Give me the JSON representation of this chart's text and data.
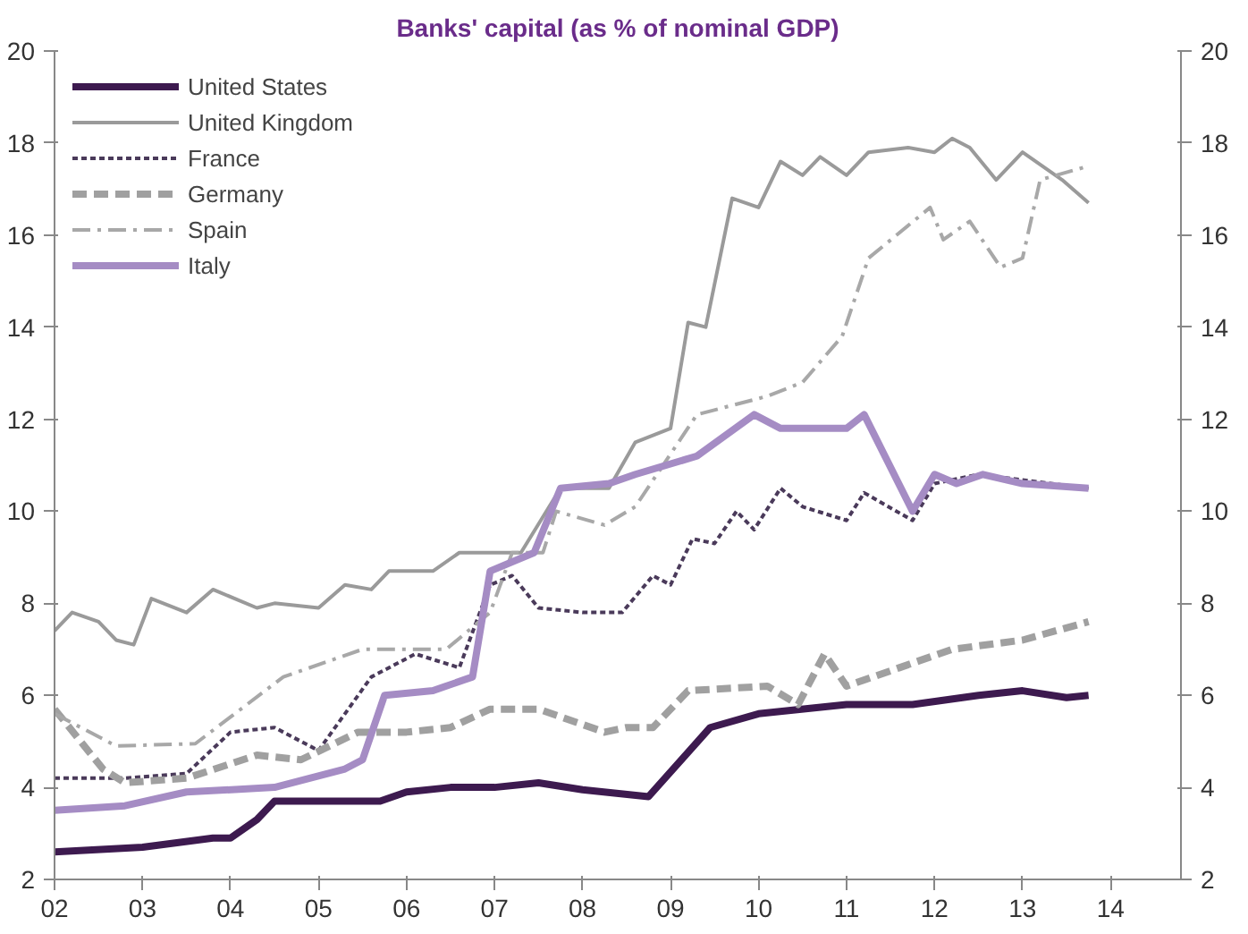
{
  "chart_data": {
    "type": "line",
    "title": "Banks' capital (as % of nominal GDP)",
    "xlim": [
      2002,
      2014.8
    ],
    "xticks": [
      {
        "value": 2002,
        "label": "02"
      },
      {
        "value": 2003,
        "label": "03"
      },
      {
        "value": 2004,
        "label": "04"
      },
      {
        "value": 2005,
        "label": "05"
      },
      {
        "value": 2006,
        "label": "06"
      },
      {
        "value": 2007,
        "label": "07"
      },
      {
        "value": 2008,
        "label": "08"
      },
      {
        "value": 2009,
        "label": "09"
      },
      {
        "value": 2010,
        "label": "10"
      },
      {
        "value": 2011,
        "label": "11"
      },
      {
        "value": 2012,
        "label": "12"
      },
      {
        "value": 2013,
        "label": "13"
      },
      {
        "value": 2014,
        "label": "14"
      }
    ],
    "ylim": [
      2,
      20
    ],
    "yticks": [
      2,
      4,
      6,
      8,
      10,
      12,
      14,
      16,
      18,
      20
    ],
    "y2lim": [
      2,
      20
    ],
    "y2ticks": [
      2,
      4,
      6,
      8,
      10,
      12,
      14,
      16,
      18,
      20
    ],
    "grid": false,
    "legend": "top left",
    "marker": "none",
    "series": [
      {
        "name": "United States",
        "color": "#3d1a4f",
        "line_style": "solid",
        "x": [
          2002,
          2003,
          2003.8,
          2004.0,
          2004.3,
          2004.5,
          2005,
          2005.7,
          2006,
          2006.5,
          2007,
          2007.5,
          2008,
          2008.75,
          2009.45,
          2010,
          2011,
          2011.75,
          2012.5,
          2013,
          2013.5,
          2013.75
        ],
        "values": [
          2.6,
          2.7,
          2.9,
          2.9,
          3.3,
          3.7,
          3.7,
          3.7,
          3.9,
          4.0,
          4.0,
          4.1,
          3.95,
          3.8,
          5.3,
          5.6,
          5.8,
          5.8,
          6.0,
          6.1,
          5.95,
          6.0
        ]
      },
      {
        "name": "United Kingdom",
        "color": "#9a9a9a",
        "line_style": "solid",
        "x": [
          2002,
          2002.2,
          2002.5,
          2002.7,
          2002.9,
          2003.1,
          2003.5,
          2003.8,
          2004.3,
          2004.5,
          2005,
          2005.3,
          2005.6,
          2005.8,
          2006.3,
          2006.6,
          2007,
          2007.3,
          2007.75,
          2008.3,
          2008.6,
          2009.0,
          2009.2,
          2009.4,
          2009.7,
          2010.0,
          2010.25,
          2010.5,
          2010.7,
          2011.0,
          2011.25,
          2011.7,
          2012.0,
          2012.2,
          2012.4,
          2012.7,
          2013.0,
          2013.45,
          2013.75
        ],
        "values": [
          7.4,
          7.8,
          7.6,
          7.2,
          7.1,
          8.1,
          7.8,
          8.3,
          7.9,
          8.0,
          7.9,
          8.4,
          8.3,
          8.7,
          8.7,
          9.1,
          9.1,
          9.1,
          10.5,
          10.5,
          11.5,
          11.8,
          14.1,
          14.0,
          16.8,
          16.6,
          17.6,
          17.3,
          17.7,
          17.3,
          17.8,
          17.9,
          17.8,
          18.1,
          17.9,
          17.2,
          17.8,
          17.2,
          16.7
        ]
      },
      {
        "name": "France",
        "color": "#4a3a5a",
        "line_style": "dotted",
        "x": [
          2002,
          2002.8,
          2003.5,
          2004.0,
          2004.5,
          2005.0,
          2005.3,
          2005.6,
          2006.1,
          2006.6,
          2006.95,
          2007.2,
          2007.5,
          2008.0,
          2008.45,
          2008.8,
          2009.0,
          2009.25,
          2009.5,
          2009.75,
          2009.95,
          2010.25,
          2010.5,
          2011.0,
          2011.2,
          2011.75,
          2012.0,
          2012.5,
          2013.75
        ],
        "values": [
          4.2,
          4.2,
          4.3,
          5.2,
          5.3,
          4.8,
          5.6,
          6.4,
          6.9,
          6.6,
          8.4,
          8.6,
          7.9,
          7.8,
          7.8,
          8.6,
          8.4,
          9.4,
          9.3,
          10.0,
          9.6,
          10.5,
          10.1,
          9.8,
          10.4,
          9.8,
          10.6,
          10.8,
          10.5
        ]
      },
      {
        "name": "Germany",
        "color": "#a0a0a0",
        "line_style": "dashed",
        "x": [
          2002,
          2002.55,
          2002.8,
          2003.5,
          2004.3,
          2004.8,
          2005.45,
          2006.0,
          2006.5,
          2006.95,
          2007.5,
          2008.25,
          2008.5,
          2008.8,
          2009.2,
          2010.1,
          2010.45,
          2010.75,
          2011.0,
          2011.6,
          2012.2,
          2013.0,
          2013.75
        ],
        "values": [
          5.7,
          4.4,
          4.1,
          4.2,
          4.7,
          4.6,
          5.2,
          5.2,
          5.3,
          5.7,
          5.7,
          5.2,
          5.3,
          5.3,
          6.1,
          6.2,
          5.8,
          6.9,
          6.2,
          6.6,
          7.0,
          7.2,
          7.6
        ]
      },
      {
        "name": "Spain",
        "color": "#a8a8a8",
        "line_style": "dashdot",
        "x": [
          2002,
          2002.7,
          2003.6,
          2004.6,
          2005.5,
          2006.45,
          2006.95,
          2007.2,
          2007.55,
          2007.7,
          2008.25,
          2008.6,
          2009.3,
          2010.1,
          2010.5,
          2010.95,
          2011.25,
          2011.95,
          2012.1,
          2012.4,
          2012.75,
          2013.0,
          2013.2,
          2013.75
        ],
        "values": [
          5.6,
          4.9,
          4.95,
          6.4,
          7.0,
          7.0,
          7.8,
          9.1,
          9.1,
          10.0,
          9.7,
          10.1,
          12.1,
          12.5,
          12.8,
          13.8,
          15.5,
          16.6,
          15.9,
          16.3,
          15.3,
          15.5,
          17.2,
          17.5
        ]
      },
      {
        "name": "Italy",
        "color": "#a58cc4",
        "line_style": "solid",
        "x": [
          2002,
          2002.8,
          2003.5,
          2004.5,
          2005.3,
          2005.5,
          2005.75,
          2006.3,
          2006.75,
          2006.95,
          2007.45,
          2007.75,
          2008.3,
          2008.6,
          2009.3,
          2009.95,
          2010.25,
          2011.0,
          2011.2,
          2011.75,
          2012.0,
          2012.25,
          2012.55,
          2013.0,
          2013.75
        ],
        "values": [
          3.5,
          3.6,
          3.9,
          4.0,
          4.4,
          4.6,
          6.0,
          6.1,
          6.4,
          8.7,
          9.1,
          10.5,
          10.6,
          10.8,
          11.2,
          12.1,
          11.8,
          11.8,
          12.1,
          10.0,
          10.8,
          10.6,
          10.8,
          10.6,
          10.5
        ]
      }
    ]
  }
}
